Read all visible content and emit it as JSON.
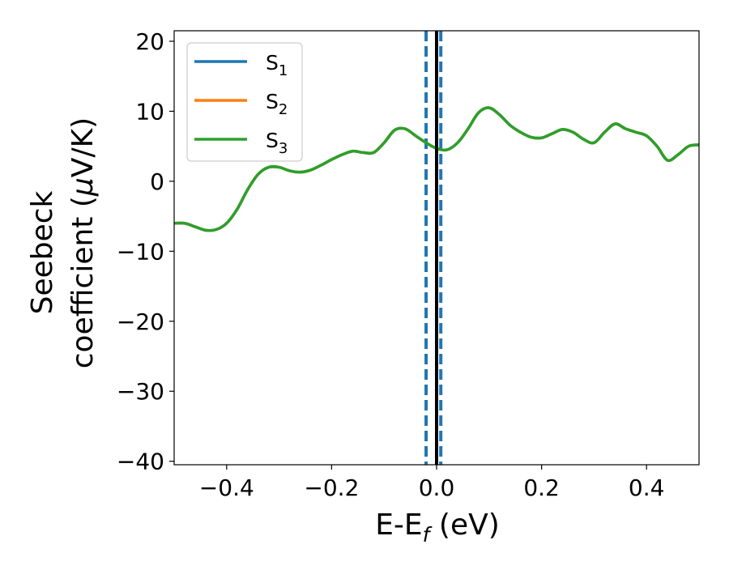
{
  "chart_data": {
    "type": "line",
    "xlabel": "E-E",
    "xlabel_sub": "f",
    "xlabel_unit": " (eV)",
    "ylabel_line1": "Seebeck",
    "ylabel_line2_prefix": "coefficient  (",
    "ylabel_mu": "μ",
    "ylabel_line2_suffix": "V/K)",
    "xlim": [
      -0.5,
      0.5
    ],
    "ylim": [
      -40.5,
      21.5
    ],
    "xticks": [
      -0.4,
      -0.2,
      0.0,
      0.2,
      0.4
    ],
    "xtick_labels": [
      "−0.4",
      "−0.2",
      "0.0",
      "0.2",
      "0.4"
    ],
    "yticks": [
      -40,
      -30,
      -20,
      -10,
      0,
      10,
      20
    ],
    "ytick_labels": [
      "−40",
      "−30",
      "−20",
      "−10",
      "0",
      "10",
      "20"
    ],
    "grid": false,
    "legend_position": "top-left",
    "series": [
      {
        "name": "S",
        "name_sub": "1",
        "color": "#1f77b4",
        "x": [
          -0.5,
          -0.48,
          -0.46,
          -0.44,
          -0.42,
          -0.4,
          -0.38,
          -0.36,
          -0.34,
          -0.32,
          -0.3,
          -0.28,
          -0.26,
          -0.24,
          -0.22,
          -0.2,
          -0.18,
          -0.16,
          -0.14,
          -0.12,
          -0.1,
          -0.08,
          -0.06,
          -0.04,
          -0.02,
          0.0,
          0.02,
          0.04,
          0.06,
          0.08,
          0.1,
          0.12,
          0.14,
          0.16,
          0.18,
          0.2,
          0.22,
          0.24,
          0.26,
          0.28,
          0.3,
          0.32,
          0.34,
          0.36,
          0.38,
          0.4,
          0.42,
          0.44,
          0.46,
          0.48,
          0.5
        ],
        "y": [
          -6.0,
          -6.0,
          -6.5,
          -7.0,
          -6.9,
          -6.0,
          -4.0,
          -1.2,
          1.0,
          2.0,
          2.0,
          1.5,
          1.3,
          1.6,
          2.3,
          3.1,
          3.8,
          4.3,
          4.1,
          4.1,
          5.5,
          7.3,
          7.5,
          6.5,
          5.5,
          4.7,
          4.5,
          5.5,
          7.5,
          9.8,
          10.5,
          9.5,
          8.0,
          7.0,
          6.3,
          6.2,
          6.8,
          7.4,
          7.0,
          6.0,
          5.5,
          7.0,
          8.2,
          7.5,
          7.0,
          6.5,
          5.0,
          3.0,
          3.8,
          5.0,
          5.2
        ]
      },
      {
        "name": "S",
        "name_sub": "2",
        "color": "#ff7f0e",
        "x": [
          -0.5,
          -0.48,
          -0.46,
          -0.44,
          -0.42,
          -0.4,
          -0.38,
          -0.36,
          -0.34,
          -0.32,
          -0.3,
          -0.28,
          -0.26,
          -0.24,
          -0.22,
          -0.2,
          -0.18,
          -0.16,
          -0.14,
          -0.12,
          -0.1,
          -0.08,
          -0.06,
          -0.04,
          -0.02,
          0.0,
          0.02,
          0.04,
          0.06,
          0.08,
          0.1,
          0.12,
          0.14,
          0.16,
          0.18,
          0.2,
          0.22,
          0.24,
          0.26,
          0.28,
          0.3,
          0.32,
          0.34,
          0.36,
          0.38,
          0.4,
          0.42,
          0.44,
          0.46,
          0.48,
          0.5
        ],
        "y": [
          -6.0,
          -6.0,
          -6.5,
          -7.0,
          -6.9,
          -6.0,
          -4.0,
          -1.2,
          1.0,
          2.0,
          2.0,
          1.5,
          1.3,
          1.6,
          2.3,
          3.1,
          3.8,
          4.3,
          4.1,
          4.1,
          5.5,
          7.3,
          7.5,
          6.5,
          5.5,
          4.7,
          4.5,
          5.5,
          7.5,
          9.8,
          10.5,
          9.5,
          8.0,
          7.0,
          6.3,
          6.2,
          6.8,
          7.4,
          7.0,
          6.0,
          5.5,
          7.0,
          8.2,
          7.5,
          7.0,
          6.5,
          5.0,
          3.0,
          3.8,
          5.0,
          5.2
        ]
      },
      {
        "name": "S",
        "name_sub": "3",
        "color": "#2ca02c",
        "x": [
          -0.5,
          -0.48,
          -0.46,
          -0.44,
          -0.42,
          -0.4,
          -0.38,
          -0.36,
          -0.34,
          -0.32,
          -0.3,
          -0.28,
          -0.26,
          -0.24,
          -0.22,
          -0.2,
          -0.18,
          -0.16,
          -0.14,
          -0.12,
          -0.1,
          -0.08,
          -0.06,
          -0.04,
          -0.02,
          0.0,
          0.02,
          0.04,
          0.06,
          0.08,
          0.1,
          0.12,
          0.14,
          0.16,
          0.18,
          0.2,
          0.22,
          0.24,
          0.26,
          0.28,
          0.3,
          0.32,
          0.34,
          0.36,
          0.38,
          0.4,
          0.42,
          0.44,
          0.46,
          0.48,
          0.5
        ],
        "y": [
          -6.0,
          -6.0,
          -6.5,
          -7.0,
          -6.9,
          -6.0,
          -4.0,
          -1.2,
          1.0,
          2.0,
          2.0,
          1.5,
          1.3,
          1.6,
          2.3,
          3.1,
          3.8,
          4.3,
          4.1,
          4.1,
          5.5,
          7.3,
          7.5,
          6.5,
          5.5,
          4.7,
          4.5,
          5.5,
          7.5,
          9.8,
          10.5,
          9.5,
          8.0,
          7.0,
          6.3,
          6.2,
          6.8,
          7.4,
          7.0,
          6.0,
          5.5,
          7.0,
          8.2,
          7.5,
          7.0,
          6.5,
          5.0,
          3.0,
          3.8,
          5.0,
          5.2
        ]
      }
    ],
    "vlines": [
      {
        "x": -0.02,
        "style": "dashed",
        "color": "#1f77b4"
      },
      {
        "x": 0.008,
        "style": "dashed",
        "color": "#1f77b4"
      },
      {
        "x": 0.0,
        "style": "solid",
        "color": "#000000"
      }
    ]
  }
}
